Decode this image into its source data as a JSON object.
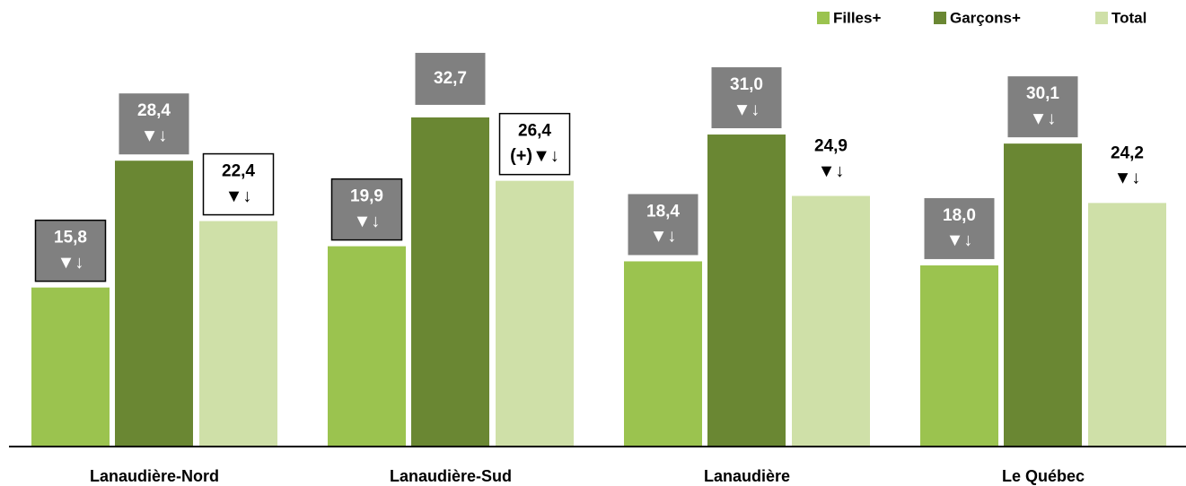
{
  "chart_data": {
    "type": "bar",
    "categories": [
      "Lanaudière-Nord",
      "Lanaudière-Sud",
      "Lanaudière",
      "Le Québec"
    ],
    "series": [
      {
        "name": "Filles+",
        "color": "#9bc34f",
        "values": [
          15.8,
          19.9,
          18.4,
          18.0
        ],
        "value_labels": [
          "15,8",
          "19,9",
          "18,4",
          "18,0"
        ],
        "markers": [
          "▼↓",
          "▼↓",
          "▼↓",
          "▼↓"
        ]
      },
      {
        "name": "Garçons+",
        "color": "#6a8733",
        "values": [
          28.4,
          32.7,
          31.0,
          30.1
        ],
        "value_labels": [
          "28,4",
          "32,7",
          "31,0",
          "30,1"
        ],
        "markers": [
          "▼↓",
          null,
          "▼↓",
          "▼↓"
        ]
      },
      {
        "name": "Total",
        "color": "#cfe0a8",
        "values": [
          22.4,
          26.4,
          24.9,
          24.2
        ],
        "value_labels": [
          "22,4",
          "26,4",
          "24,9",
          "24,2"
        ],
        "markers": [
          "▼↓",
          "(+)▼↓",
          "▼↓",
          "▼↓"
        ]
      }
    ],
    "ylim": [
      0,
      40
    ],
    "legend": "top-right"
  }
}
